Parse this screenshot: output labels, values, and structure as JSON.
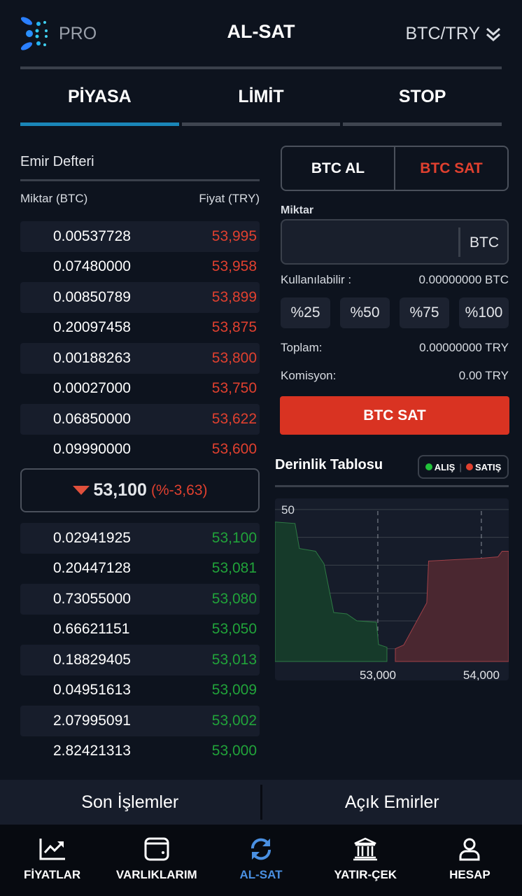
{
  "header": {
    "brand": "PRO",
    "title": "AL-SAT",
    "pair": "BTC/TRY"
  },
  "tabs": [
    {
      "label": "PİYASA",
      "active": true
    },
    {
      "label": "LİMİT"
    },
    {
      "label": "STOP"
    }
  ],
  "order_book": {
    "title": "Emir Defteri",
    "col_amount": "Miktar (BTC)",
    "col_price": "Fiyat (TRY)",
    "asks": [
      [
        "0.00537728",
        "53,995"
      ],
      [
        "0.07480000",
        "53,958"
      ],
      [
        "0.00850789",
        "53,899"
      ],
      [
        "0.20097458",
        "53,875"
      ],
      [
        "0.00188263",
        "53,800"
      ],
      [
        "0.00027000",
        "53,750"
      ],
      [
        "0.06850000",
        "53,622"
      ],
      [
        "0.09990000",
        "53,600"
      ]
    ],
    "last_price": "53,100",
    "change": "(%-3,63)",
    "bids": [
      [
        "0.02941925",
        "53,100"
      ],
      [
        "0.20447128",
        "53,081"
      ],
      [
        "0.73055000",
        "53,080"
      ],
      [
        "0.66621151",
        "53,050"
      ],
      [
        "0.18829405",
        "53,013"
      ],
      [
        "0.04951613",
        "53,009"
      ],
      [
        "2.07995091",
        "53,002"
      ],
      [
        "2.82421313",
        "53,000"
      ]
    ]
  },
  "form": {
    "buy_label": "BTC AL",
    "sell_label": "BTC SAT",
    "amount_label": "Miktar",
    "amount_value": "",
    "unit": "BTC",
    "available_label": "Kullanılabilir :",
    "available_value": "0.00000000 BTC",
    "percents": [
      "%25",
      "%50",
      "%75",
      "%100"
    ],
    "total_label": "Toplam:",
    "total_value": "0.00000000 TRY",
    "fee_label": "Komisyon:",
    "fee_value": "0.00 TRY",
    "submit_label": "BTC SAT"
  },
  "depth": {
    "title": "Derinlik Tablosu",
    "legend_buy": "ALIŞ",
    "legend_sell": "SATIŞ"
  },
  "chart_data": {
    "type": "area",
    "xlim": [
      52007,
      54264
    ],
    "ylim": [
      -4.6,
      54
    ],
    "yticks": [
      "50",
      "40",
      "30",
      "20",
      "10",
      "0"
    ],
    "ytick_values": [
      50,
      40,
      30,
      20,
      10,
      0
    ],
    "xticks": [
      "53,000",
      "54,000"
    ],
    "xtick_values": [
      53000,
      54000
    ],
    "grid": true,
    "colors": {
      "buy": "#21a33a",
      "sell": "#e0402f"
    },
    "series": [
      {
        "name": "ALIŞ",
        "points": [
          [
            52007,
            45.5
          ],
          [
            52200,
            45
          ],
          [
            52243,
            36
          ],
          [
            52399,
            35
          ],
          [
            52480,
            30.5
          ],
          [
            52574,
            13
          ],
          [
            52700,
            12.5
          ],
          [
            52797,
            10
          ],
          [
            52986,
            9.5
          ],
          [
            53007,
            1.5
          ],
          [
            53088,
            0.5
          ]
        ]
      },
      {
        "name": "SATIŞ",
        "points": [
          [
            53169,
            0
          ],
          [
            53250,
            1.3
          ],
          [
            53473,
            16.5
          ],
          [
            53490,
            31.5
          ],
          [
            54000,
            32.5
          ],
          [
            54160,
            33
          ],
          [
            54200,
            35
          ],
          [
            54264,
            35
          ]
        ]
      }
    ]
  },
  "bottom_tabs": [
    "Son İşlemler",
    "Açık Emirler"
  ],
  "nav": [
    {
      "label": "FİYATLAR",
      "icon": "chart-line-icon"
    },
    {
      "label": "VARLIKLARIM",
      "icon": "wallet-icon"
    },
    {
      "label": "AL-SAT",
      "icon": "refresh-icon",
      "active": true
    },
    {
      "label": "YATIR-ÇEK",
      "icon": "bank-icon"
    },
    {
      "label": "HESAP",
      "icon": "user-icon"
    }
  ]
}
